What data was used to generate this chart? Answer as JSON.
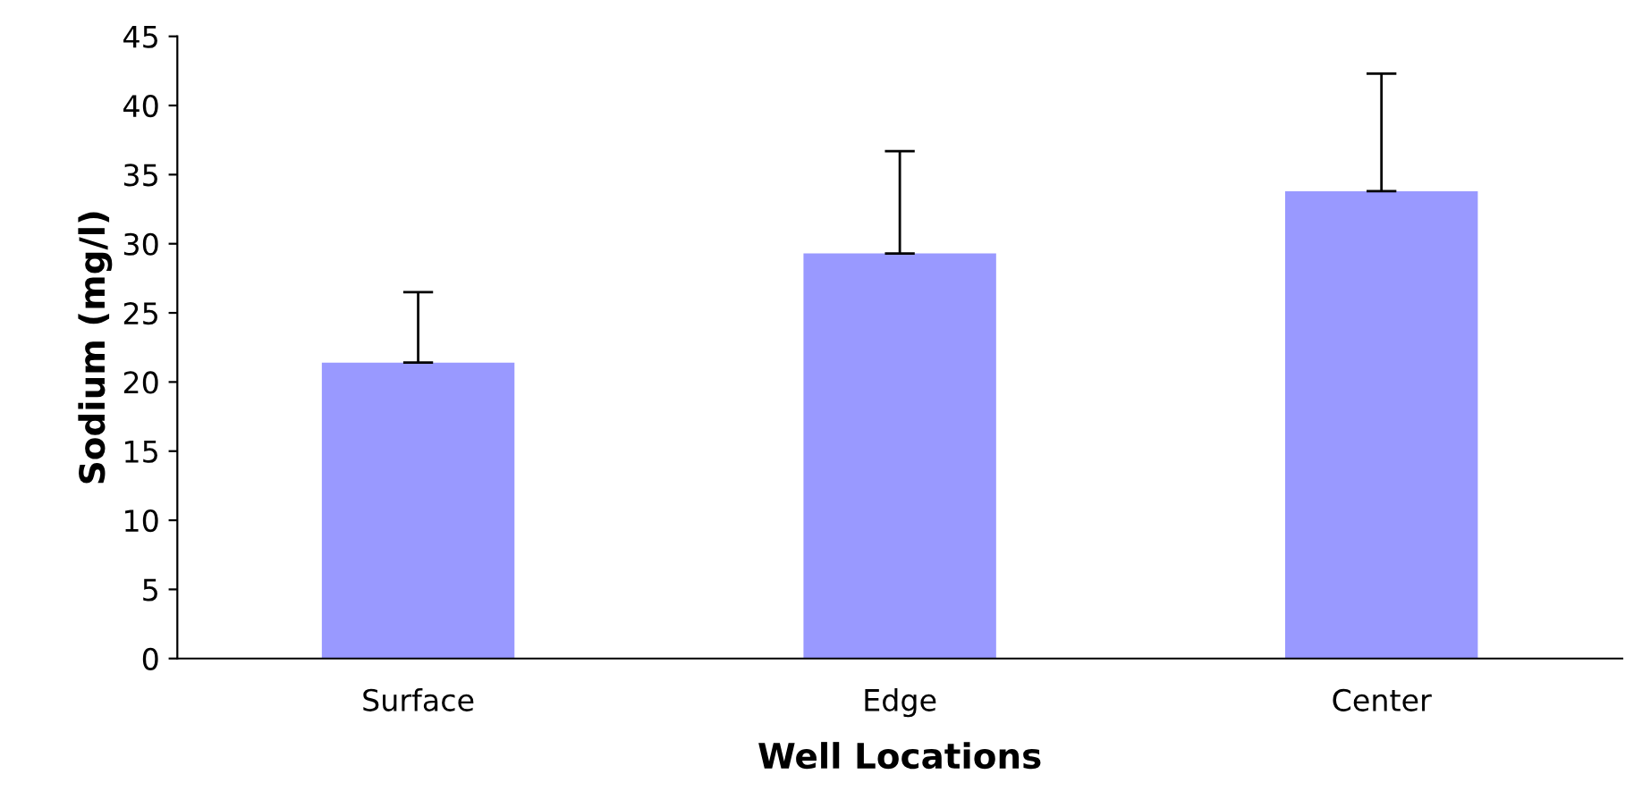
{
  "chart_data": {
    "type": "bar",
    "xlabel": "Well Locations",
    "ylabel": "Sodium (mg/l)",
    "categories": [
      "Surface",
      "Edge",
      "Center"
    ],
    "values": [
      21.4,
      29.3,
      33.8
    ],
    "errors": [
      [
        21.4,
        26.5
      ],
      [
        29.3,
        36.7
      ],
      [
        33.8,
        42.3
      ]
    ],
    "color": "#9999ff",
    "ylim": [
      0,
      45
    ],
    "yticks": [
      0,
      5,
      10,
      15,
      20,
      25,
      30,
      35,
      40,
      45
    ],
    "grid": false
  }
}
